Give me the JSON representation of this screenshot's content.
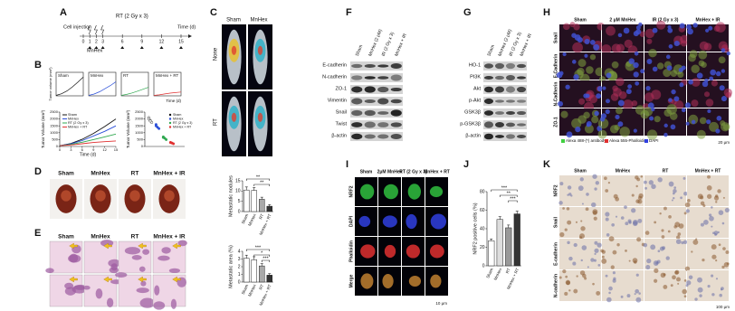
{
  "A": {
    "label": "A",
    "cell_injection": "Cell injection",
    "treatment": "RT (2 Gy x 3)",
    "drug": "MnHex",
    "axis_label": "Time (d)",
    "days": [
      0,
      1,
      2,
      3,
      6,
      9,
      12,
      15
    ]
  },
  "B": {
    "label": "B",
    "small_titles": [
      "Sham",
      "MnHex",
      "RT",
      "MnHex + RT"
    ],
    "small_ylabel": "Tumor volume (mm³)",
    "small_xlabel": "Time (d)",
    "line_chart": {
      "type": "line",
      "ylabel": "Tumor Volume (mm³)",
      "xlabel": "Time (d)",
      "x": [
        0,
        3,
        6,
        9,
        12,
        15
      ],
      "xlim": [
        0,
        15
      ],
      "xticks": [
        0,
        3,
        6,
        9,
        12,
        15
      ],
      "ylim": [
        0,
        2500
      ],
      "yticks": [
        0,
        500,
        1000,
        1500,
        2000,
        2500
      ],
      "series": [
        {
          "name": "Sham",
          "color": "#111111",
          "values": [
            50,
            220,
            520,
            950,
            1450,
            2000
          ]
        },
        {
          "name": "MnHex",
          "color": "#2b4fd8",
          "values": [
            50,
            190,
            430,
            760,
            1100,
            1500
          ]
        },
        {
          "name": "RT (2 Gy x 3)",
          "color": "#2fa84f",
          "values": [
            50,
            150,
            310,
            500,
            700,
            900
          ]
        },
        {
          "name": "MnHex + RT",
          "color": "#e03030",
          "values": [
            50,
            110,
            200,
            290,
            350,
            400
          ]
        }
      ]
    },
    "dot_chart": {
      "type": "scatter",
      "ylabel": "Tumor Volume (mm³)",
      "ylim": [
        0,
        2500
      ],
      "yticks": [
        0,
        500,
        1000,
        1500,
        2000,
        2500
      ],
      "series": [
        {
          "name": "Sham",
          "color": "#111111",
          "values": [
            2100,
            1900,
            1750,
            2000,
            1850
          ]
        },
        {
          "name": "MnHex",
          "color": "#2b4fd8",
          "values": [
            1600,
            1400,
            1300,
            1500
          ]
        },
        {
          "name": "RT (2 Gy x 3)",
          "color": "#2fa84f",
          "values": [
            700,
            600,
            500,
            650
          ]
        },
        {
          "name": "MnHex + RT",
          "color": "#e03030",
          "values": [
            300,
            250,
            200,
            280
          ]
        }
      ]
    }
  },
  "C": {
    "label": "C",
    "columns": [
      "Sham",
      "MnHex"
    ],
    "rows": [
      "None",
      "RT"
    ]
  },
  "D": {
    "label": "D",
    "columns": [
      "Sham",
      "MnHex",
      "RT",
      "MnHex + IR"
    ],
    "chart": {
      "type": "bar",
      "ylabel": "Metastatic nodules",
      "categories": [
        "Sham",
        "MnHex",
        "RT",
        "MnHex + RT"
      ],
      "values": [
        10.5,
        10.3,
        6,
        2.6
      ],
      "errors": [
        1.5,
        1.4,
        1,
        0.8
      ],
      "colors": [
        "#ffffff",
        "#ffffff",
        "#aaaaaa",
        "#333333"
      ],
      "ylim": [
        0,
        15
      ],
      "yticks": [
        0,
        5,
        10,
        15
      ],
      "annotations": [
        "**",
        "**"
      ]
    }
  },
  "E": {
    "label": "E",
    "columns": [
      "Sham",
      "MnHex",
      "RT",
      "MnHex + IR"
    ],
    "chart": {
      "type": "bar",
      "ylabel": "Metastatic area (%)",
      "categories": [
        "Sham",
        "MnHex",
        "RT",
        "MnHex + RT"
      ],
      "values": [
        3.1,
        2.9,
        2.1,
        0.9
      ],
      "errors": [
        0.4,
        0.4,
        0.3,
        0.2
      ],
      "colors": [
        "#ffffff",
        "#ffffff",
        "#aaaaaa",
        "#333333"
      ],
      "ylim": [
        0,
        4
      ],
      "yticks": [
        0,
        1,
        2,
        3,
        4
      ],
      "annotations": [
        "***",
        "*",
        "***"
      ]
    }
  },
  "F": {
    "label": "F",
    "columns": [
      "Sham",
      "MnHex (2 μM)",
      "IR (2 Gy x 3)",
      "MnHex + IR"
    ],
    "rows": [
      "E-cadherin",
      "N-cadherin",
      "ZO-1",
      "Vimentin",
      "Snail",
      "Twist",
      "β-actin"
    ]
  },
  "G": {
    "label": "G",
    "columns": [
      "Sham",
      "MnHex (2 μM)",
      "IR (2 Gy x 3)",
      "MnHex + IR"
    ],
    "rows": [
      "HO-1",
      "PI3K",
      "Akt",
      "p-Akt",
      "GSK3β",
      "p-GSK3β",
      "β-actin"
    ]
  },
  "H": {
    "label": "H",
    "columns": [
      "Sham",
      "2 μM MnHex",
      "IR (2 Gy x 3)",
      "MnHex + IR"
    ],
    "rows": [
      "Snail",
      "E-Cadherin",
      "N-Cadherin",
      "ZO-1"
    ],
    "legend": [
      "Alexa 488-(*) antibody",
      "Alexa 555-Phalloidin",
      "DAPI"
    ],
    "scale": "20 μm"
  },
  "I": {
    "label": "I",
    "columns": [
      "Sham",
      "2μM MnHex",
      "RT (2 Gy x 3)",
      "MnHex + RT"
    ],
    "rows": [
      "NRF2",
      "DAPI",
      "Phalloidin",
      "Merge"
    ],
    "scale": "10 μm"
  },
  "J": {
    "label": "J",
    "chart": {
      "type": "bar",
      "ylabel": "NRF2 positive cells (%)",
      "categories": [
        "Sham",
        "MnHex",
        "RT",
        "MnHex + RT"
      ],
      "values": [
        27,
        50,
        41,
        56
      ],
      "errors": [
        2,
        3,
        3,
        3
      ],
      "colors": [
        "#ffffff",
        "#dddddd",
        "#999999",
        "#333333"
      ],
      "ylim": [
        0,
        80
      ],
      "yticks": [
        0,
        20,
        40,
        60,
        80
      ],
      "annotations": [
        "***",
        "**",
        "***"
      ]
    }
  },
  "K": {
    "label": "K",
    "columns": [
      "Sham",
      "MnHex",
      "RT",
      "MnHex + RT"
    ],
    "rows": [
      "NRF2",
      "Snail",
      "E-cadherin",
      "N-cadherin"
    ],
    "scale": "100 μm"
  }
}
